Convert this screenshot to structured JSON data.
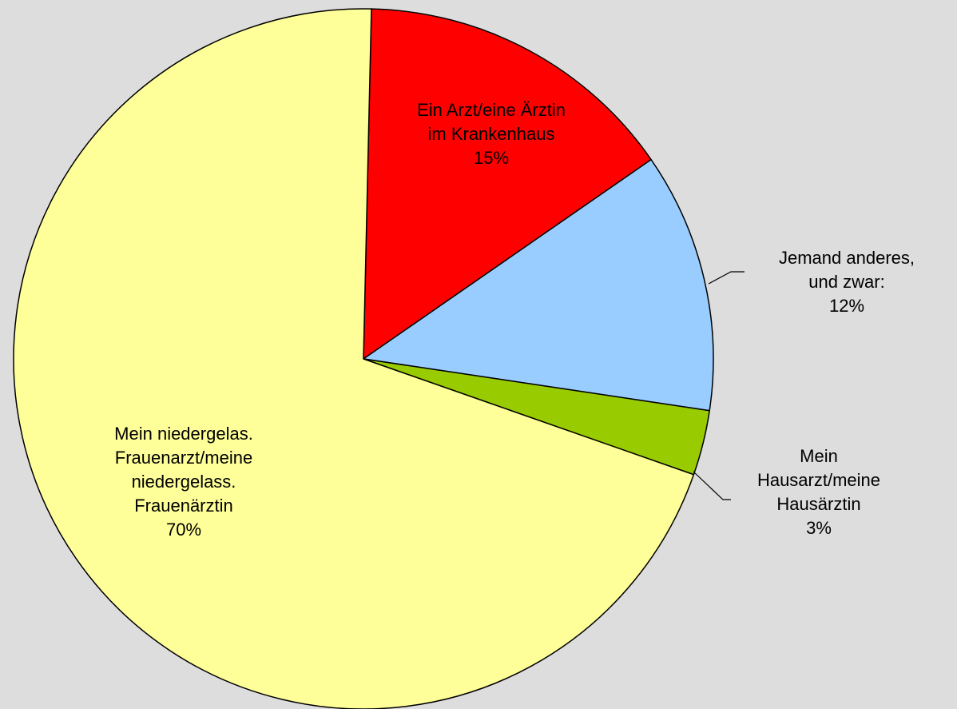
{
  "chart_data": {
    "type": "pie",
    "categories": [
      "Ein Arzt/eine Ärztin\nim Krankenhaus",
      "Jemand anderes,\nund zwar:",
      "Mein\nHausarzt/meine\nHausärztin",
      "Mein niedergelas.\nFrauenarzt/meine\nniedergelass.\nFrauenärztin"
    ],
    "values": [
      15,
      12,
      3,
      70
    ],
    "value_labels": [
      "15%",
      "12%",
      "3%",
      "70%"
    ],
    "colors": [
      "#ff0000",
      "#99ccff",
      "#99cc00",
      "#ffff99"
    ]
  }
}
